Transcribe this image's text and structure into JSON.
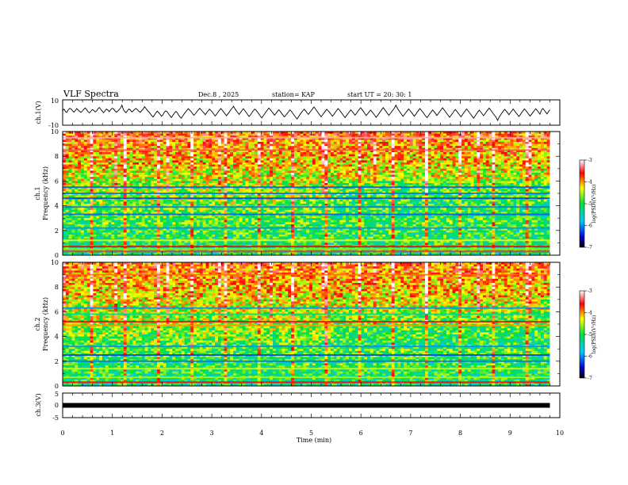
{
  "header": {
    "title": "VLF Spectra",
    "date": "Dec.8 , 2025",
    "station": "station= KAP",
    "start": "start UT = 20: 30: 1"
  },
  "chart_data": [
    {
      "type": "line",
      "id": "ch1-waveform",
      "ylabel": "ch.1(V)",
      "ylim": [
        -10,
        10
      ],
      "y_ticks": [
        "10",
        "-10"
      ],
      "xlim": [
        0,
        10
      ],
      "color": "#000000",
      "series": [
        {
          "name": "ch.1",
          "values_description_only": false
        }
      ],
      "values": [
        2.1,
        3.4,
        1.2,
        0.5,
        2.8,
        4.1,
        3.6,
        1.9,
        0.8,
        2.2,
        3.9,
        2.7,
        1.4,
        0.6,
        1.8,
        3.3,
        4.5,
        2.9,
        1.1,
        0.2,
        1.5,
        3.1,
        2.4,
        0.9,
        1.7,
        3.8,
        4.9,
        3.2,
        1.6,
        0.4,
        1.9,
        3.5,
        2.6,
        1.3,
        2.8,
        4.2,
        3.7,
        2.0,
        0.7,
        1.6,
        3.0,
        4.4,
        6.8,
        3.1,
        1.2,
        0.3,
        2.2,
        3.6,
        2.5,
        1.0,
        1.9,
        3.3,
        4.0,
        2.8,
        1.5,
        0.6,
        2.1,
        3.4,
        5.6,
        3.9,
        2.3,
        1.1,
        -0.4,
        -2.1,
        -3.5,
        -1.8,
        0.2,
        1.6,
        0.4,
        -1.2,
        -2.8,
        -1.5,
        0.6,
        2.0,
        1.1,
        -0.7,
        -2.4,
        -3.9,
        -2.2,
        -0.3,
        1.4,
        0.5,
        -1.6,
        -3.2,
        -4.6,
        -2.7,
        -0.8,
        0.9,
        2.3,
        3.8,
        2.6,
        1.2,
        -0.5,
        -2.0,
        -0.6,
        1.1,
        2.7,
        4.1,
        3.0,
        1.5,
        0.2,
        -1.4,
        0.3,
        1.8,
        3.4,
        2.2,
        0.8,
        -0.9,
        -2.6,
        -1.1,
        0.7,
        2.4,
        3.9,
        2.5,
        1.0,
        -0.6,
        -2.3,
        -0.8,
        0.9,
        2.6,
        4.2,
        5.9,
        3.7,
        1.9,
        0.4,
        -1.2,
        0.6,
        2.2,
        3.8,
        2.1,
        0.5,
        -1.3,
        -3.0,
        -1.6,
        0.3,
        1.9,
        3.5,
        2.4,
        0.8,
        -0.9,
        -2.7,
        -4.3,
        -2.5,
        -0.7,
        1.0,
        2.7,
        4.4,
        3.1,
        1.4,
        -0.2,
        -1.9,
        -0.4,
        1.3,
        2.9,
        1.6,
        -0.1,
        -1.8,
        -3.4,
        -2.0,
        -0.4,
        1.2,
        2.8,
        1.5,
        -0.3,
        -2.0,
        -3.7,
        -5.2,
        -3.3,
        -1.5,
        0.3,
        1.9,
        3.4,
        2.0,
        0.4,
        -1.2,
        0.5,
        2.1,
        3.7,
        5.3,
        3.6,
        1.8,
        0.1,
        -1.6,
        -3.3,
        -1.7,
        0.0,
        1.7,
        3.3,
        2.1,
        0.6,
        -1.0,
        -2.8,
        -1.2,
        0.5,
        2.2,
        3.9,
        2.6,
        1.0,
        -0.6,
        -2.4,
        -4.0,
        -2.2,
        -0.5,
        1.1,
        2.8,
        1.4,
        -0.2,
        -1.9,
        -0.3,
        1.4,
        3.0,
        4.6,
        3.0,
        1.3,
        -0.4,
        -2.1,
        -0.6,
        1.0,
        2.6,
        1.3,
        -0.3,
        -2.0,
        -3.8,
        -2.1,
        -0.4,
        1.3,
        3.0,
        4.7,
        3.1,
        1.4,
        -0.3,
        -2.0,
        -0.5,
        1.2,
        2.8,
        4.5,
        6.9,
        4.2,
        2.3,
        0.5,
        -1.2,
        -2.9,
        -1.3,
        0.4,
        2.0,
        3.6,
        2.2,
        0.6,
        -1.1,
        -2.8,
        -1.2,
        0.6,
        2.3,
        3.9,
        2.4,
        0.8,
        -0.9,
        -2.6,
        -4.1,
        -2.3,
        -0.6,
        1.1,
        2.7,
        1.3,
        -0.4,
        -2.1,
        -0.5,
        1.2,
        2.9,
        4.6,
        3.0,
        1.4,
        -0.3,
        -2.0,
        -3.7,
        -2.0,
        -0.3,
        1.4,
        3.1,
        1.7,
        0.1,
        -1.6,
        -3.3,
        -1.7,
        0.1,
        1.8,
        3.5,
        2.1,
        0.5,
        -1.2,
        -2.9,
        -4.5,
        -2.6,
        -0.8,
        0.9,
        2.5,
        1.1,
        -0.6,
        -2.3,
        -0.7,
        1.0,
        2.7,
        4.3,
        2.8,
        1.1,
        -0.6,
        -2.3,
        -4.0,
        -6.5,
        -3.8,
        -1.9,
        0.0,
        1.7,
        3.3,
        1.9,
        0.3,
        -1.4,
        0.2,
        1.9,
        3.5,
        2.0,
        0.4,
        -1.3,
        -3.0,
        -1.5,
        0.3,
        2.0,
        3.6,
        2.2,
        0.6,
        -1.1,
        -2.7,
        -1.1,
        0.6,
        2.2,
        3.8,
        2.3,
        0.7,
        -1.0,
        2.4,
        4.0,
        2.5,
        0.9,
        -0.8,
        1.2,
        2.9
      ]
    },
    {
      "type": "heatmap",
      "id": "ch1-spectrogram",
      "ylabel_top": "ch.1",
      "ylabel": "Frequency (kHz)",
      "ylim": [
        0,
        10
      ],
      "y_ticks": [
        "0",
        "2",
        "4",
        "6",
        "8",
        "10"
      ],
      "xlim": [
        0,
        10
      ],
      "data_end_min": 9.8,
      "colorbar": {
        "label": "log(PSD)(V²/Hz)",
        "ticks": [
          "-3",
          "-4",
          "-5",
          "-6",
          "-7"
        ],
        "range": [
          -7,
          -3
        ]
      },
      "bands": [
        {
          "f": 0.3,
          "v": -3.5
        },
        {
          "f": 0.5,
          "v": -4.6
        },
        {
          "f": 0.7,
          "v": -3.6
        },
        {
          "f": 1.2,
          "v": -4.3
        },
        {
          "f": 2.2,
          "v": -6.0
        },
        {
          "f": 3.3,
          "v": -6.2
        },
        {
          "f": 3.9,
          "v": -6.1
        },
        {
          "f": 4.6,
          "v": -6.3
        },
        {
          "f": 5.0,
          "v": -6.1
        },
        {
          "f": 5.5,
          "v": -6.2
        },
        {
          "f": 8.5,
          "v": -3.4
        },
        {
          "f": 9.5,
          "v": -3.2
        }
      ]
    },
    {
      "type": "heatmap",
      "id": "ch2-spectrogram",
      "ylabel_top": "ch.2",
      "ylabel": "Frequency (kHz)",
      "ylim": [
        0,
        10
      ],
      "y_ticks": [
        "0",
        "2",
        "4",
        "6",
        "8",
        "10"
      ],
      "xlim": [
        0,
        10
      ],
      "data_end_min": 9.8,
      "colorbar": {
        "label": "log(PSD)(V²/Hz)",
        "ticks": [
          "-3",
          "-4",
          "-5",
          "-6",
          "-7"
        ],
        "range": [
          -7,
          -3
        ]
      },
      "bands": [
        {
          "f": 0.3,
          "v": -3.6
        },
        {
          "f": 0.7,
          "v": -4.5
        },
        {
          "f": 1.4,
          "v": -4.4
        },
        {
          "f": 2.0,
          "v": -6.1
        },
        {
          "f": 2.5,
          "v": -6.3
        },
        {
          "f": 3.2,
          "v": -6.0
        },
        {
          "f": 4.9,
          "v": -4.0
        },
        {
          "f": 5.2,
          "v": -3.6
        },
        {
          "f": 5.8,
          "v": -5.3
        },
        {
          "f": 6.3,
          "v": -6.0
        },
        {
          "f": 9.0,
          "v": -3.9
        }
      ]
    },
    {
      "type": "line",
      "id": "ch3-waveform",
      "ylabel": "ch.3(V)",
      "ylim": [
        -5,
        5
      ],
      "y_ticks": [
        "5",
        "0",
        "-5"
      ],
      "xlim": [
        0,
        10
      ],
      "level": 0,
      "data_end_min": 9.8,
      "color": "#000000"
    }
  ],
  "x_axis": {
    "label": "Time (min)",
    "ticks": [
      "0",
      "1",
      "2",
      "3",
      "4",
      "5",
      "6",
      "7",
      "8",
      "9",
      "10"
    ],
    "range": [
      0,
      10
    ]
  }
}
